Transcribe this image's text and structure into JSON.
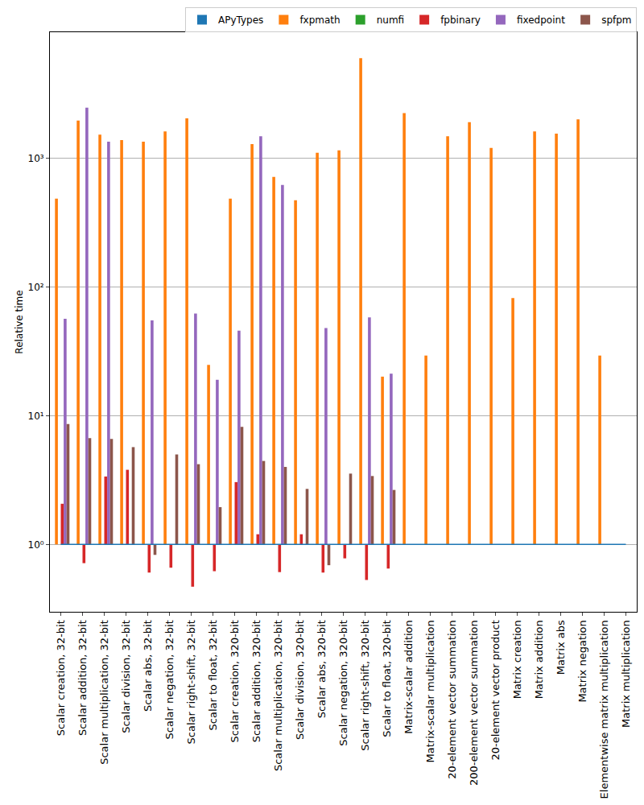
{
  "chart_data": {
    "type": "bar",
    "y_label": "Relative time",
    "categories": [
      "Scalar creation, 32-bit",
      "Scalar addition, 32-bit",
      "Scalar multiplication, 32-bit",
      "Scalar division, 32-bit",
      "Scalar abs, 32-bit",
      "Scalar negation, 32-bit",
      "Scalar right-shift, 32-bit",
      "Scalar to float, 32-bit",
      "Scalar creation, 320-bit",
      "Scalar addition, 320-bit",
      "Scalar multiplication, 320-bit",
      "Scalar division, 320-bit",
      "Scalar abs, 320-bit",
      "Scalar negation, 320-bit",
      "Scalar right-shift, 320-bit",
      "Scalar to float, 320-bit",
      "Matrix-scalar addition",
      "Matrix-scalar multiplication",
      "20-element vector summation",
      "200-element vector summation",
      "20-element vector product",
      "Matrix creation",
      "Matrix addition",
      "Matrix abs",
      "Matrix negation",
      "Elementwise matrix multiplication",
      "Matrix multiplication"
    ],
    "series": [
      {
        "name": "APyTypes",
        "color": "#1f77b4",
        "values": [
          1,
          1,
          1,
          1,
          1,
          1,
          1,
          1,
          1,
          1,
          1,
          1,
          1,
          1,
          1,
          1,
          1,
          1,
          1,
          1,
          1,
          1,
          1,
          1,
          1,
          1,
          1
        ]
      },
      {
        "name": "fxpmath",
        "color": "#ff7f0e",
        "values": [
          484,
          1960,
          1520,
          1380,
          1340,
          1610,
          2040,
          24.8,
          484,
          1285,
          716,
          471,
          1100,
          1150,
          5970,
          20.1,
          2240,
          29.3,
          1480,
          1900,
          1200,
          82,
          1610,
          1550,
          2000,
          29.3,
          null
        ]
      },
      {
        "name": "numfi",
        "color": "#2ca02c",
        "values": [
          null,
          null,
          null,
          null,
          null,
          null,
          null,
          null,
          null,
          null,
          null,
          null,
          null,
          null,
          null,
          null,
          null,
          null,
          null,
          null,
          null,
          null,
          null,
          null,
          null,
          null,
          null
        ]
      },
      {
        "name": "fpbinary",
        "color": "#d62728",
        "values": [
          2.07,
          0.716,
          3.37,
          3.8,
          0.605,
          0.66,
          0.47,
          0.62,
          3.05,
          1.2,
          0.61,
          1.2,
          0.605,
          0.78,
          0.53,
          0.65,
          null,
          null,
          null,
          null,
          null,
          null,
          null,
          null,
          null,
          null,
          null
        ]
      },
      {
        "name": "fixedpoint",
        "color": "#9467bd",
        "values": [
          56.6,
          2460,
          1340,
          null,
          55,
          null,
          62,
          19,
          45.7,
          1480,
          620,
          null,
          48,
          null,
          58,
          21.2,
          null,
          null,
          null,
          null,
          null,
          null,
          null,
          null,
          null,
          null,
          null
        ]
      },
      {
        "name": "spfpm",
        "color": "#8c564b",
        "values": [
          8.6,
          6.7,
          6.6,
          5.7,
          0.83,
          5.0,
          4.2,
          1.95,
          8.2,
          4.45,
          4.0,
          2.7,
          0.69,
          3.55,
          3.4,
          2.65,
          null,
          null,
          null,
          null,
          null,
          null,
          null,
          null,
          null,
          null,
          null
        ]
      }
    ],
    "log": "y",
    "ylim": [
      0.3,
      9500
    ],
    "yticks": [
      {
        "value": 1,
        "label": "10⁰"
      },
      {
        "value": 10,
        "label": "10¹"
      },
      {
        "value": 100,
        "label": "10²"
      },
      {
        "value": 1000,
        "label": "10³"
      }
    ],
    "grid": true,
    "legend": "top"
  }
}
